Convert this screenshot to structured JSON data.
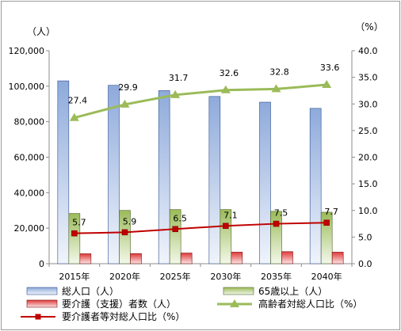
{
  "chart_data": {
    "type": "bar",
    "categories": [
      "2015年",
      "2020年",
      "2025年",
      "2030年",
      "2035年",
      "2040年"
    ],
    "left_axis": {
      "unit": "（人）",
      "ylim": [
        0,
        120000
      ],
      "ticks": [
        "0",
        "20,000",
        "40,000",
        "60,000",
        "80,000",
        "100,000",
        "120,000"
      ]
    },
    "right_axis": {
      "unit": "（%）",
      "ylim": [
        0,
        40
      ],
      "ticks": [
        "0.0",
        "5.0",
        "10.0",
        "15.0",
        "20.0",
        "25.0",
        "30.0",
        "35.0",
        "40.0"
      ]
    },
    "series": [
      {
        "name": "総人口（人）",
        "type": "bar",
        "axis": "left",
        "color": "#8eaadb",
        "values": [
          103000,
          100500,
          97500,
          94200,
          91000,
          87500
        ]
      },
      {
        "name": "65歳以上（人）",
        "type": "bar",
        "axis": "left",
        "color": "#9bbb59",
        "values": [
          28300,
          30000,
          30500,
          30500,
          29500,
          29000
        ]
      },
      {
        "name": "要介護（支援）者数（人）",
        "type": "bar",
        "axis": "left",
        "color": "#c0392b",
        "values": [
          5600,
          5700,
          6000,
          6500,
          6800,
          6500
        ]
      },
      {
        "name": "高齢者対総人口比（%）",
        "type": "line",
        "axis": "right",
        "color": "#9bbb59",
        "marker": "triangle",
        "values": [
          27.4,
          29.9,
          31.7,
          32.6,
          32.8,
          33.6
        ],
        "labels": [
          "27.4",
          "29.9",
          "31.7",
          "32.6",
          "32.8",
          "33.6"
        ]
      },
      {
        "name": "要介護者等対総人口比（%）",
        "type": "line",
        "axis": "right",
        "color": "#c00000",
        "marker": "square",
        "values": [
          5.7,
          5.9,
          6.5,
          7.1,
          7.5,
          7.7
        ],
        "labels": [
          "5.7",
          "5.9",
          "6.5",
          "7.1",
          "7.5",
          "7.7"
        ]
      }
    ],
    "grid": false,
    "legend": "bottom"
  }
}
